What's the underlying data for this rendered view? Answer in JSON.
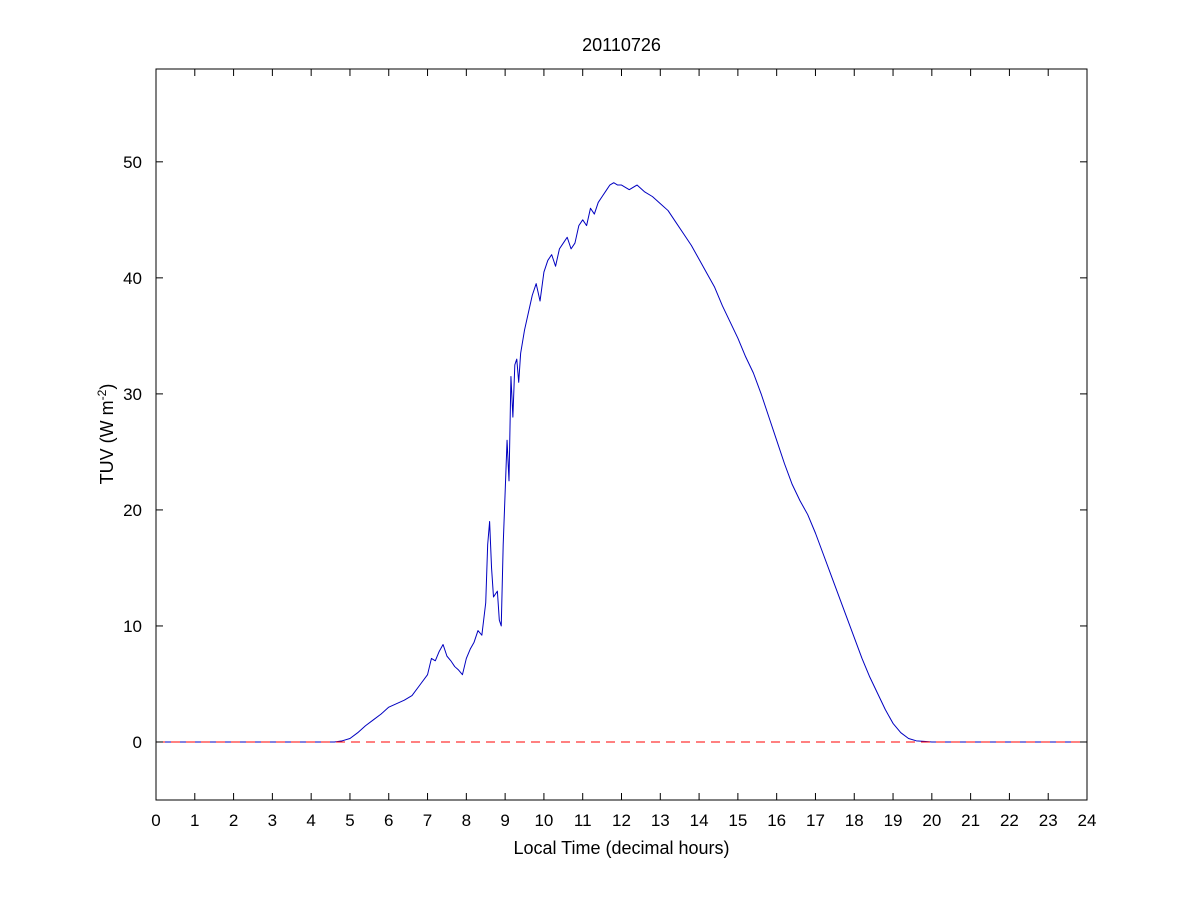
{
  "chart_data": {
    "type": "line",
    "title": "20110726",
    "xlabel": "Local Time (decimal hours)",
    "ylabel": {
      "main": "TUV (W m",
      "sup": "-2",
      "close": ")"
    },
    "xlim": [
      0,
      24
    ],
    "ylim": [
      -5,
      58
    ],
    "xticks": [
      0,
      1,
      2,
      3,
      4,
      5,
      6,
      7,
      8,
      9,
      10,
      11,
      12,
      13,
      14,
      15,
      16,
      17,
      18,
      19,
      20,
      21,
      22,
      23,
      24
    ],
    "yticks": [
      0,
      10,
      20,
      30,
      40,
      50
    ],
    "grid": false,
    "legend": "none",
    "series": [
      {
        "color": "#0000c0",
        "style": "solid",
        "x": [
          0,
          4.6,
          4.8,
          5.0,
          5.2,
          5.4,
          5.6,
          5.8,
          6.0,
          6.2,
          6.4,
          6.6,
          6.8,
          7.0,
          7.1,
          7.2,
          7.3,
          7.4,
          7.5,
          7.6,
          7.7,
          7.8,
          7.9,
          8.0,
          8.1,
          8.2,
          8.3,
          8.4,
          8.5,
          8.55,
          8.6,
          8.65,
          8.7,
          8.8,
          8.85,
          8.9,
          8.95,
          9.0,
          9.05,
          9.1,
          9.15,
          9.2,
          9.25,
          9.3,
          9.35,
          9.4,
          9.5,
          9.6,
          9.7,
          9.8,
          9.9,
          10.0,
          10.1,
          10.2,
          10.3,
          10.4,
          10.5,
          10.6,
          10.7,
          10.8,
          10.9,
          11.0,
          11.1,
          11.2,
          11.3,
          11.4,
          11.5,
          11.6,
          11.7,
          11.8,
          11.9,
          12.0,
          12.2,
          12.4,
          12.6,
          12.8,
          13.0,
          13.2,
          13.4,
          13.6,
          13.8,
          14.0,
          14.2,
          14.4,
          14.6,
          14.8,
          15.0,
          15.2,
          15.4,
          15.6,
          15.8,
          16.0,
          16.2,
          16.4,
          16.6,
          16.8,
          17.0,
          17.2,
          17.4,
          17.6,
          17.8,
          18.0,
          18.2,
          18.4,
          18.6,
          18.8,
          19.0,
          19.2,
          19.4,
          19.6,
          19.8,
          20.0,
          21.0,
          24.0
        ],
        "y": [
          0,
          0,
          0.1,
          0.3,
          0.8,
          1.4,
          1.9,
          2.4,
          3.0,
          3.3,
          3.6,
          4.0,
          4.9,
          5.8,
          7.2,
          7.0,
          7.8,
          8.4,
          7.4,
          7.0,
          6.5,
          6.2,
          5.8,
          7.2,
          8.0,
          8.6,
          9.6,
          9.2,
          12.0,
          17.0,
          19.0,
          15.0,
          12.5,
          13.0,
          10.5,
          10.0,
          17.0,
          21.5,
          26.0,
          22.5,
          31.5,
          28.0,
          32.5,
          33.0,
          31.0,
          33.5,
          35.5,
          37.0,
          38.5,
          39.5,
          38.0,
          40.5,
          41.5,
          42.0,
          41.0,
          42.5,
          43.0,
          43.5,
          42.5,
          43.0,
          44.5,
          45.0,
          44.5,
          46.0,
          45.5,
          46.5,
          47.0,
          47.5,
          48.0,
          48.2,
          48.0,
          48.0,
          47.6,
          48.0,
          47.4,
          47.0,
          46.4,
          45.8,
          44.8,
          43.8,
          42.8,
          41.6,
          40.4,
          39.2,
          37.6,
          36.2,
          34.8,
          33.2,
          31.8,
          30.0,
          28.0,
          26.0,
          24.0,
          22.2,
          20.8,
          19.6,
          18.0,
          16.2,
          14.4,
          12.6,
          10.8,
          9.0,
          7.2,
          5.6,
          4.2,
          2.8,
          1.6,
          0.8,
          0.3,
          0.1,
          0.05,
          0,
          0,
          0
        ]
      },
      {
        "color": "#ff0000",
        "style": "dashed",
        "x": [
          0,
          24
        ],
        "y": [
          0,
          0
        ]
      }
    ]
  }
}
